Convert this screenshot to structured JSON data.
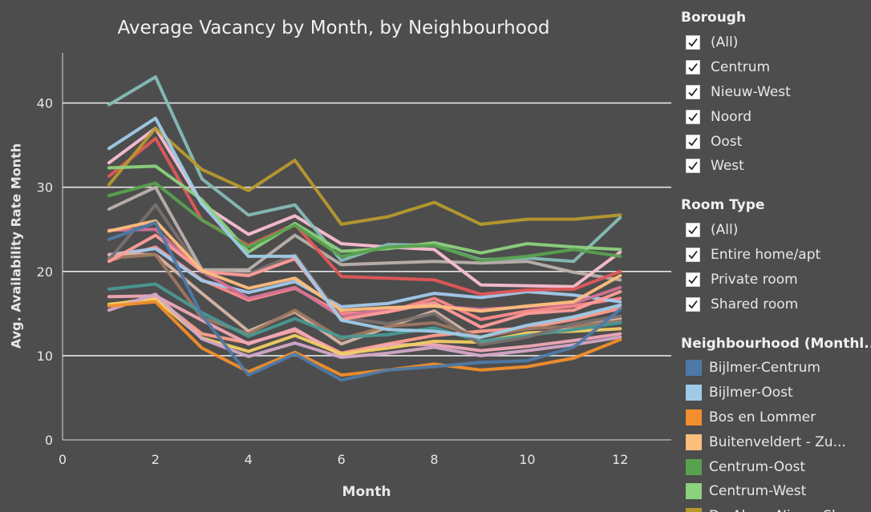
{
  "chart": {
    "title": "Average Vacancy by Month, by Neighbourhood",
    "xlabel": "Month",
    "ylabel": "Avg. Availability Rate Month"
  },
  "chart_data": {
    "type": "line",
    "title": "Average Vacancy by Month, by Neighbourhood",
    "xlabel": "Month",
    "ylabel": "Avg. Availability Rate Month",
    "x": [
      1,
      2,
      3,
      4,
      5,
      6,
      7,
      8,
      9,
      10,
      11,
      12
    ],
    "xlim": [
      0,
      13.1
    ],
    "ylim": [
      0,
      45
    ],
    "xticks": [
      0,
      2,
      4,
      6,
      8,
      10,
      12
    ],
    "yticks": [
      0,
      10,
      20,
      30,
      40
    ],
    "grid": "horizontal",
    "legend_position": "right",
    "series": [
      {
        "name": "Bijlmer-Centrum",
        "color": "#4e79a7",
        "values": [
          23.8,
          25.8,
          14.8,
          7.7,
          10.2,
          7.1,
          8.3,
          8.7,
          9.2,
          9.4,
          11.0,
          15.5
        ]
      },
      {
        "name": "Bijlmer-Oost",
        "color": "#a0cbe8",
        "values": [
          34.6,
          38.2,
          28.0,
          21.8,
          21.8,
          14.2,
          13.1,
          12.9,
          12.2,
          13.6,
          14.6,
          16.0
        ]
      },
      {
        "name": "Bos en Lommer",
        "color": "#f28e2b",
        "values": [
          15.9,
          16.4,
          10.9,
          8.1,
          10.4,
          7.7,
          8.3,
          9.0,
          8.3,
          8.7,
          9.7,
          11.9
        ]
      },
      {
        "name": "Buitenveldert - Zuidas",
        "color": "#ffbe7d",
        "values": [
          24.8,
          26.0,
          20.1,
          18.0,
          19.2,
          15.4,
          15.7,
          15.9,
          15.3,
          15.9,
          16.4,
          19.5
        ]
      },
      {
        "name": "Centrum-Oost",
        "color": "#59a14f",
        "values": [
          29.0,
          30.5,
          26.1,
          22.9,
          25.5,
          21.8,
          22.9,
          23.1,
          21.3,
          21.8,
          22.6,
          21.8
        ]
      },
      {
        "name": "Centrum-West",
        "color": "#8cd17d",
        "values": [
          32.3,
          32.5,
          28.5,
          22.3,
          25.7,
          22.4,
          22.7,
          23.4,
          22.2,
          23.3,
          22.9,
          22.6
        ]
      },
      {
        "name": "De Aker - Nieuw Sloten",
        "color": "#b6992d",
        "values": [
          30.3,
          37.0,
          32.1,
          29.6,
          33.2,
          25.6,
          26.5,
          28.2,
          25.6,
          26.2,
          26.2,
          26.7
        ]
      },
      {
        "name": "",
        "color": "#86bcb6",
        "values": [
          39.8,
          43.1,
          31.0,
          26.7,
          27.9,
          21.3,
          23.2,
          23.1,
          21.4,
          21.6,
          21.2,
          26.4
        ]
      },
      {
        "name": "",
        "color": "#e15759",
        "values": [
          31.3,
          35.8,
          26.1,
          23.1,
          25.6,
          19.4,
          19.2,
          19.0,
          17.3,
          17.8,
          17.9,
          20.0
        ]
      },
      {
        "name": "",
        "color": "#ff9d9a",
        "values": [
          21.2,
          24.3,
          20.0,
          19.5,
          21.5,
          14.3,
          15.2,
          16.3,
          13.4,
          15.0,
          15.4,
          17.6
        ]
      },
      {
        "name": "",
        "color": "#fabfd2",
        "values": [
          32.9,
          37.0,
          28.0,
          24.4,
          26.6,
          23.3,
          22.9,
          22.6,
          18.4,
          18.3,
          18.2,
          22.3
        ]
      },
      {
        "name": "",
        "color": "#bab0ac",
        "values": [
          27.4,
          30.0,
          20.2,
          20.2,
          24.3,
          20.8,
          21.0,
          21.2,
          21.0,
          21.2,
          19.9,
          19.0
        ]
      },
      {
        "name": "",
        "color": "#79706e",
        "values": [
          21.4,
          27.9,
          19.9,
          19.7,
          22.0,
          14.5,
          13.8,
          15.0,
          11.3,
          12.2,
          13.8,
          14.7
        ]
      },
      {
        "name": "",
        "color": "#d37295",
        "values": [
          24.9,
          25.0,
          20.0,
          16.8,
          18.1,
          14.6,
          15.6,
          15.9,
          15.5,
          15.8,
          16.2,
          18.1
        ]
      },
      {
        "name": "",
        "color": "#d4a6c8",
        "values": [
          15.4,
          17.3,
          12.0,
          9.9,
          11.5,
          9.8,
          10.3,
          11.0,
          10.0,
          10.6,
          11.3,
          12.2
        ]
      },
      {
        "name": "",
        "color": "#499894",
        "values": [
          17.9,
          18.5,
          15.1,
          12.3,
          14.4,
          12.2,
          12.5,
          13.3,
          11.7,
          12.4,
          13.1,
          13.9
        ]
      },
      {
        "name": "",
        "color": "#f1ce63",
        "values": [
          16.1,
          16.7,
          12.1,
          10.5,
          12.4,
          10.2,
          10.9,
          11.7,
          11.6,
          12.7,
          12.9,
          13.2
        ]
      },
      {
        "name": "",
        "color": "#9d7660",
        "values": [
          21.6,
          22.0,
          14.5,
          12.6,
          15.4,
          12.0,
          13.5,
          13.9,
          12.2,
          13.2,
          13.5,
          14.1
        ]
      },
      {
        "name": "",
        "color": "#d7b5a6",
        "values": [
          22.0,
          22.0,
          17.4,
          12.9,
          15.2,
          11.4,
          13.4,
          15.3,
          11.7,
          12.4,
          13.4,
          14.4
        ]
      },
      {
        "name": "",
        "color": "#f0a8b8",
        "values": [
          17.0,
          17.1,
          14.2,
          11.4,
          13.2,
          10.0,
          11.3,
          11.3,
          10.6,
          11.1,
          11.8,
          12.6
        ]
      },
      {
        "name": "",
        "color": "#ff9e8e",
        "values": [
          16.0,
          16.9,
          12.6,
          11.5,
          13.0,
          10.3,
          11.4,
          12.4,
          12.9,
          13.3,
          14.3,
          15.6
        ]
      },
      {
        "name": "",
        "color": "#a3c9ec",
        "values": [
          22.0,
          22.7,
          18.9,
          17.5,
          18.8,
          15.8,
          16.2,
          17.4,
          16.9,
          17.6,
          17.2,
          16.4
        ]
      },
      {
        "name": "",
        "color": "#ff8a8a",
        "values": [
          21.3,
          22.9,
          19.0,
          16.6,
          18.0,
          15.0,
          15.2,
          16.8,
          14.3,
          15.3,
          15.9,
          16.8
        ]
      }
    ]
  },
  "sidebar": {
    "borough": {
      "title": "Borough",
      "items": [
        "(All)",
        "Centrum",
        "Nieuw-West",
        "Noord",
        "Oost",
        "West"
      ]
    },
    "room_type": {
      "title": "Room Type",
      "items": [
        "(All)",
        "Entire home/apt",
        "Private room",
        "Shared room"
      ]
    },
    "neighbourhood": {
      "title": "Neighbourhood (Monthl...",
      "items": [
        {
          "label": "Bijlmer-Centrum",
          "color": "#4e79a7"
        },
        {
          "label": "Bijlmer-Oost",
          "color": "#a0cbe8"
        },
        {
          "label": "Bos en Lommer",
          "color": "#f28e2b"
        },
        {
          "label": "Buitenveldert - Zu...",
          "color": "#ffbe7d"
        },
        {
          "label": "Centrum-Oost",
          "color": "#59a14f"
        },
        {
          "label": "Centrum-West",
          "color": "#8cd17d"
        },
        {
          "label": "De Aker - Nieuw Sl...",
          "color": "#b6992d"
        }
      ]
    }
  }
}
